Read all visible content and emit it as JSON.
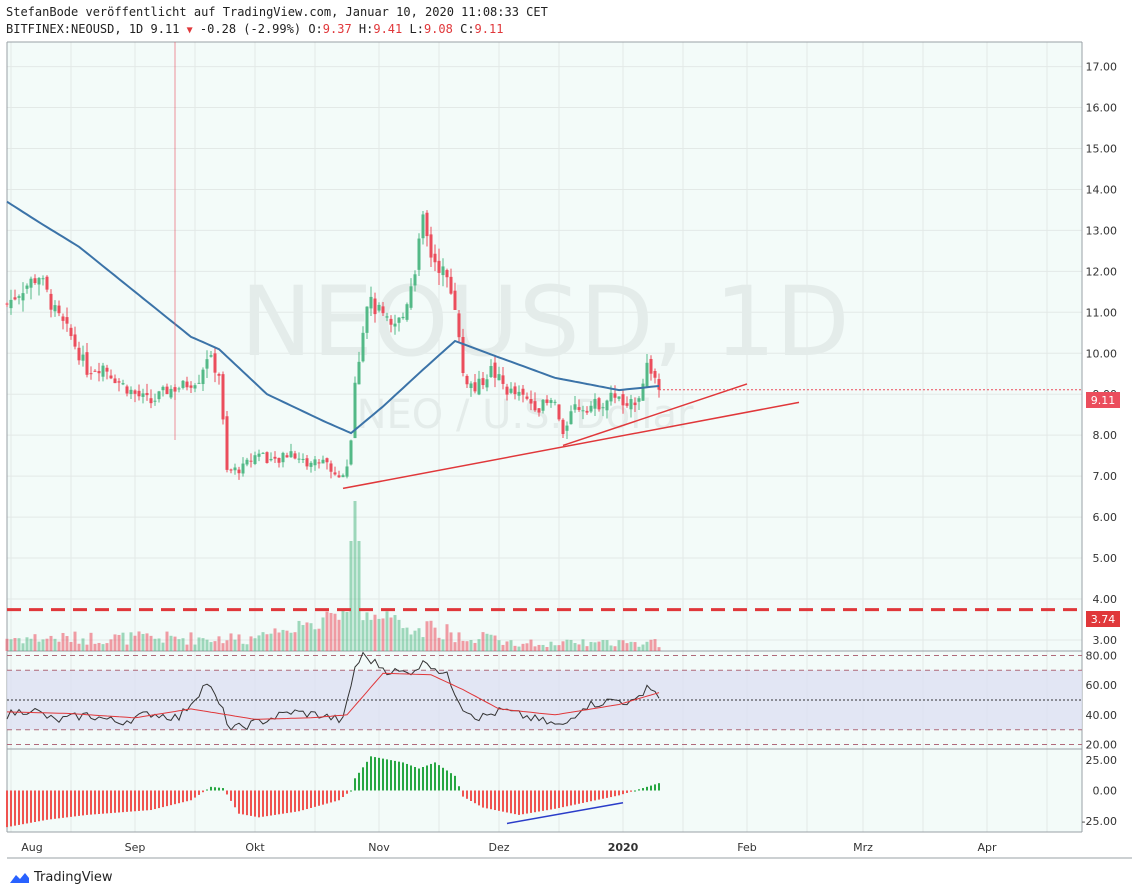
{
  "header": {
    "line1": "StefanBode veröffentlicht auf TradingView.com, Januar 10, 2020 11:08:33 CET",
    "symbol": "BITFINEX:NEOUSD, 1D",
    "last": "9.11",
    "change": "-0.28 (-2.99%)",
    "o_label": "O:",
    "o": "9.37",
    "h_label": "H:",
    "h": "9.41",
    "l_label": "L:",
    "l": "9.08",
    "c_label": "C:",
    "c": "9.11"
  },
  "watermark": {
    "main": "NEOUSD, 1D",
    "sub": "NEO / U.S. Dollar"
  },
  "price_badge": "9.11",
  "level_badge": "3.74",
  "brand": "TradingView",
  "colors": {
    "up": "#53b987",
    "down": "#eb4d5c",
    "ma": "#3b73a8",
    "bg": "#f3fbf9",
    "trend": "#e0373a",
    "level": "#e0373a",
    "rsi_line": "#333333",
    "rsi_signal": "#e0373a",
    "blue_line": "#2a3cc9"
  },
  "chart_data": [
    {
      "type": "candlestick",
      "title": "BITFINEX:NEOUSD, 1D",
      "x_ticks": [
        "Aug",
        "Sep",
        "Okt",
        "Nov",
        "Dez",
        "2020",
        "Feb",
        "Mrz",
        "Apr"
      ],
      "y_ticks": [
        "3.00",
        "4.00",
        "5.00",
        "6.00",
        "7.00",
        "8.00",
        "9.00",
        "10.00",
        "11.00",
        "12.00",
        "13.00",
        "14.00",
        "15.00",
        "16.00",
        "17.00"
      ],
      "ylim": [
        3,
        17
      ],
      "grid": true,
      "anchors_close": [
        [
          "2019-07-31",
          11.2
        ],
        [
          "2019-08-04",
          11.6
        ],
        [
          "2019-08-08",
          11.9
        ],
        [
          "2019-08-12",
          11.0
        ],
        [
          "2019-08-16",
          10.4
        ],
        [
          "2019-08-20",
          9.6
        ],
        [
          "2019-08-24",
          9.7
        ],
        [
          "2019-08-28",
          9.3
        ],
        [
          "2019-09-01",
          9.0
        ],
        [
          "2019-09-05",
          8.8
        ],
        [
          "2019-09-09",
          9.1
        ],
        [
          "2019-09-13",
          9.2
        ],
        [
          "2019-09-17",
          9.4
        ],
        [
          "2019-09-19",
          9.95
        ],
        [
          "2019-09-22",
          9.5
        ],
        [
          "2019-09-24",
          7.1
        ],
        [
          "2019-09-28",
          7.2
        ],
        [
          "2019-10-02",
          7.6
        ],
        [
          "2019-10-06",
          7.3
        ],
        [
          "2019-10-10",
          7.6
        ],
        [
          "2019-10-14",
          7.3
        ],
        [
          "2019-10-18",
          7.4
        ],
        [
          "2019-10-22",
          6.95
        ],
        [
          "2019-10-24",
          7.3
        ],
        [
          "2019-10-25",
          7.9
        ],
        [
          "2019-10-26",
          9.2
        ],
        [
          "2019-10-27",
          9.9
        ],
        [
          "2019-10-29",
          11.3
        ],
        [
          "2019-11-01",
          11.0
        ],
        [
          "2019-11-04",
          10.6
        ],
        [
          "2019-11-07",
          10.9
        ],
        [
          "2019-11-10",
          12.1
        ],
        [
          "2019-11-12",
          13.2
        ],
        [
          "2019-11-14",
          12.4
        ],
        [
          "2019-11-17",
          12.0
        ],
        [
          "2019-11-20",
          11.2
        ],
        [
          "2019-11-22",
          9.5
        ],
        [
          "2019-11-25",
          9.1
        ],
        [
          "2019-11-29",
          9.6
        ],
        [
          "2019-12-03",
          9.1
        ],
        [
          "2019-12-07",
          8.9
        ],
        [
          "2019-12-11",
          8.7
        ],
        [
          "2019-12-15",
          8.8
        ],
        [
          "2019-12-17",
          7.9
        ],
        [
          "2019-12-19",
          8.7
        ],
        [
          "2019-12-23",
          8.7
        ],
        [
          "2019-12-27",
          8.8
        ],
        [
          "2019-12-30",
          9.0
        ],
        [
          "2020-01-02",
          8.6
        ],
        [
          "2020-01-05",
          9.0
        ],
        [
          "2020-01-07",
          9.7
        ],
        [
          "2020-01-08",
          9.6
        ],
        [
          "2020-01-09",
          9.39
        ],
        [
          "2020-01-10",
          9.11
        ]
      ],
      "last_bar": {
        "date": "2020-01-10",
        "open": 9.37,
        "high": 9.41,
        "low": 9.08,
        "close": 9.11
      },
      "moving_average": [
        [
          "2019-07-31",
          13.7
        ],
        [
          "2019-08-08",
          13.2
        ],
        [
          "2019-08-18",
          12.6
        ],
        [
          "2019-09-01",
          11.5
        ],
        [
          "2019-09-15",
          10.4
        ],
        [
          "2019-09-22",
          10.1
        ],
        [
          "2019-10-04",
          9.0
        ],
        [
          "2019-10-18",
          8.35
        ],
        [
          "2019-10-25",
          8.05
        ],
        [
          "2019-11-02",
          8.7
        ],
        [
          "2019-11-12",
          9.6
        ],
        [
          "2019-11-20",
          10.3
        ],
        [
          "2019-12-01",
          9.9
        ],
        [
          "2019-12-15",
          9.4
        ],
        [
          "2019-12-31",
          9.1
        ],
        [
          "2020-01-10",
          9.2
        ]
      ],
      "volume_peak": {
        "date": "2019-10-26",
        "relative": 1.0
      },
      "trendlines": [
        {
          "from": [
            "2019-10-23",
            6.7
          ],
          "to": [
            "2020-02-14",
            8.8
          ]
        },
        {
          "from": [
            "2019-12-17",
            7.75
          ],
          "to": [
            "2020-02-01",
            9.25
          ]
        }
      ],
      "horizontal_level": 3.74,
      "last_price": 9.11
    },
    {
      "type": "line",
      "title": "",
      "y_ticks": [
        "20.00",
        "40.00",
        "60.00",
        "80.00"
      ],
      "ylim": [
        17,
        83
      ],
      "band": [
        30,
        70
      ],
      "series": [
        {
          "values": [
            [
              "2019-07-31",
              40
            ],
            [
              "2019-08-06",
              44
            ],
            [
              "2019-08-12",
              36
            ],
            [
              "2019-08-20",
              40
            ],
            [
              "2019-08-28",
              35
            ],
            [
              "2019-09-05",
              41
            ],
            [
              "2019-09-12",
              38
            ],
            [
              "2019-09-19",
              62
            ],
            [
              "2019-09-23",
              42
            ],
            [
              "2019-09-25",
              30
            ],
            [
              "2019-10-03",
              36
            ],
            [
              "2019-10-10",
              42
            ],
            [
              "2019-10-17",
              40
            ],
            [
              "2019-10-23",
              36
            ],
            [
              "2019-10-26",
              72
            ],
            [
              "2019-10-28",
              80
            ],
            [
              "2019-11-03",
              70
            ],
            [
              "2019-11-08",
              68
            ],
            [
              "2019-11-13",
              76
            ],
            [
              "2019-11-18",
              66
            ],
            [
              "2019-11-22",
              45
            ],
            [
              "2019-11-26",
              38
            ],
            [
              "2019-12-02",
              43
            ],
            [
              "2019-12-10",
              37
            ],
            [
              "2019-12-17",
              32
            ],
            [
              "2019-12-22",
              46
            ],
            [
              "2019-12-30",
              50
            ],
            [
              "2020-01-04",
              48
            ],
            [
              "2020-01-07",
              60
            ],
            [
              "2020-01-10",
              53
            ]
          ]
        },
        {
          "values": [
            [
              "2019-07-31",
              42
            ],
            [
              "2019-08-15",
              41
            ],
            [
              "2019-09-01",
              38
            ],
            [
              "2019-09-15",
              44
            ],
            [
              "2019-10-01",
              37
            ],
            [
              "2019-10-15",
              38
            ],
            [
              "2019-10-24",
              40
            ],
            [
              "2019-11-02",
              68
            ],
            [
              "2019-11-14",
              67
            ],
            [
              "2019-11-22",
              57
            ],
            [
              "2019-12-01",
              44
            ],
            [
              "2019-12-15",
              40
            ],
            [
              "2019-12-31",
              47
            ],
            [
              "2020-01-10",
              55
            ]
          ]
        }
      ]
    },
    {
      "type": "bar",
      "title": "",
      "y_ticks": [
        "25.00",
        "0.00",
        "-25.00"
      ],
      "ylim": [
        -32,
        32
      ],
      "series": [
        {
          "values": [
            [
              "2019-07-31",
              -30
            ],
            [
              "2019-08-10",
              -24
            ],
            [
              "2019-08-20",
              -20
            ],
            [
              "2019-09-05",
              -16
            ],
            [
              "2019-09-15",
              -8
            ],
            [
              "2019-09-20",
              3
            ],
            [
              "2019-09-23",
              2
            ],
            [
              "2019-09-27",
              -19
            ],
            [
              "2019-10-02",
              -22
            ],
            [
              "2019-10-12",
              -17
            ],
            [
              "2019-10-22",
              -8
            ],
            [
              "2019-10-25",
              0
            ],
            [
              "2019-10-26",
              10
            ],
            [
              "2019-10-30",
              28
            ],
            [
              "2019-11-07",
              23
            ],
            [
              "2019-11-11",
              18
            ],
            [
              "2019-11-15",
              23
            ],
            [
              "2019-11-20",
              12
            ],
            [
              "2019-11-22",
              -5
            ],
            [
              "2019-11-27",
              -14
            ],
            [
              "2019-12-06",
              -20
            ],
            [
              "2019-12-15",
              -15
            ],
            [
              "2019-12-31",
              -4
            ],
            [
              "2020-01-04",
              0
            ],
            [
              "2020-01-10",
              6
            ]
          ]
        }
      ],
      "trendline": {
        "from": [
          "2019-12-03",
          -27
        ],
        "to": [
          "2020-01-01",
          -10
        ]
      }
    }
  ]
}
